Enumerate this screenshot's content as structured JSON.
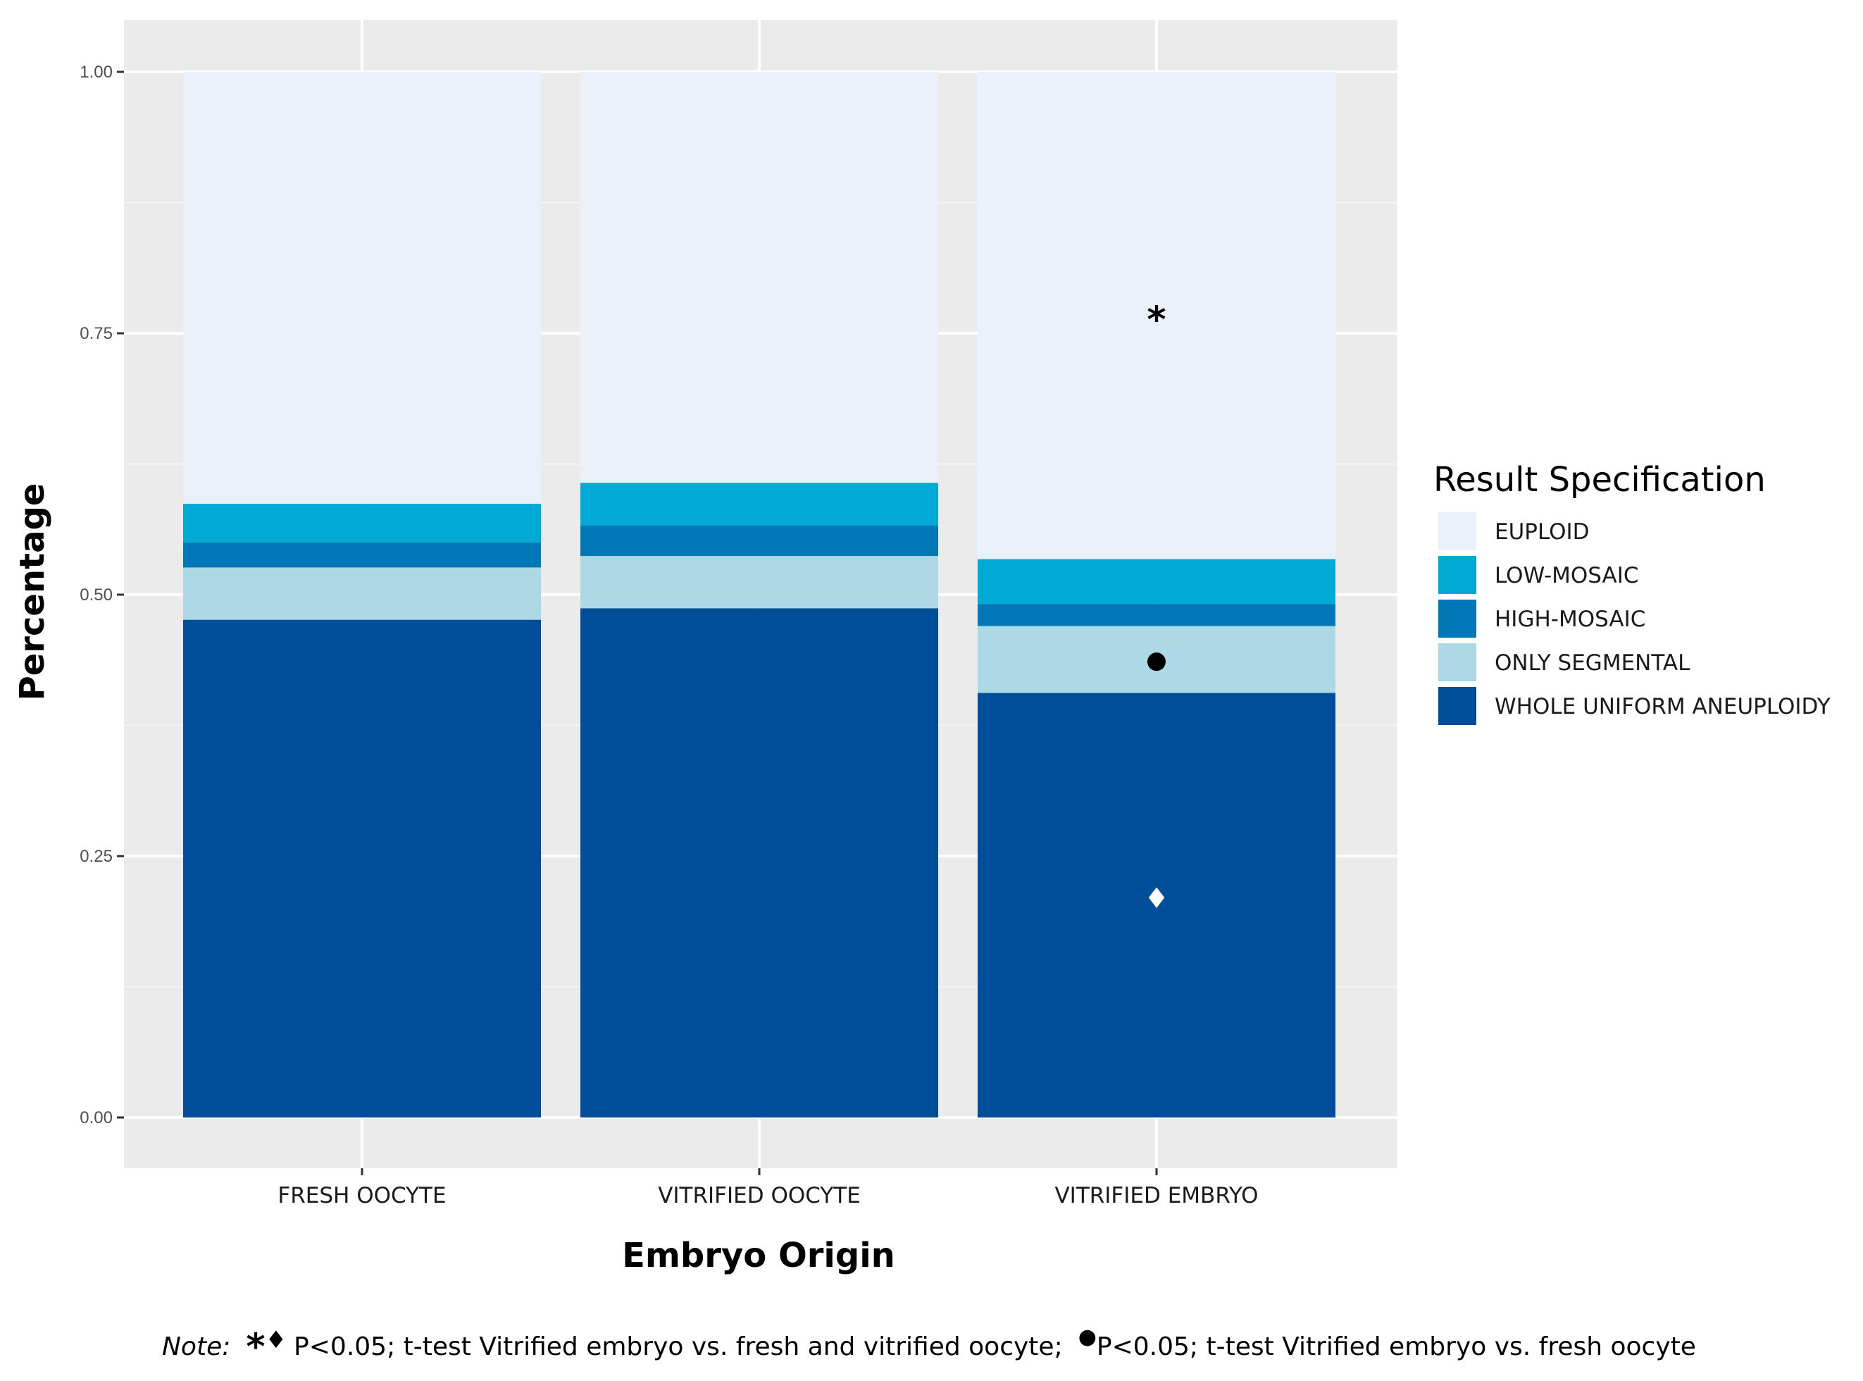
{
  "chart_data": {
    "type": "bar",
    "stacked": true,
    "categories": [
      "FRESH OOCYTE",
      "VITRIFIED OOCYTE",
      "VITRIFIED EMBRYO"
    ],
    "series": [
      {
        "name": "WHOLE UNIFORM ANEUPLOIDY",
        "color": "#004e9a",
        "values": [
          0.476,
          0.487,
          0.406
        ]
      },
      {
        "name": "ONLY SEGMENTAL",
        "color": "#add8e6",
        "values": [
          0.05,
          0.05,
          0.064
        ]
      },
      {
        "name": "HIGH-MOSAIC",
        "color": "#0077b6",
        "values": [
          0.024,
          0.029,
          0.021
        ]
      },
      {
        "name": "LOW-MOSAIC",
        "color": "#00aad4",
        "values": [
          0.037,
          0.041,
          0.043
        ]
      },
      {
        "name": "EUPLOID",
        "color": "#eaf1fb",
        "values": [
          0.413,
          0.393,
          0.466
        ]
      }
    ],
    "xlabel": "Embryo Origin",
    "ylabel": "Percentage",
    "ylim": [
      0,
      1.05
    ],
    "yticks": [
      "0.00",
      "0.25",
      "0.50",
      "0.75",
      "1.00"
    ],
    "legend_title": "Result Specification",
    "legend_position": "right",
    "legend_order": [
      "EUPLOID",
      "LOW-MOSAIC",
      "HIGH-MOSAIC",
      "ONLY SEGMENTAL",
      "WHOLE UNIFORM ANEUPLOIDY"
    ],
    "grid": true,
    "annotations": [
      {
        "symbol": "*",
        "category": "VITRIFIED EMBRYO",
        "series": "EUPLOID",
        "y": 0.77,
        "color": "#000000"
      },
      {
        "symbol": "●",
        "category": "VITRIFIED EMBRYO",
        "series": "ONLY SEGMENTAL",
        "y": 0.438,
        "color": "#000000"
      },
      {
        "symbol": "♦",
        "category": "VITRIFIED EMBRYO",
        "series": "WHOLE UNIFORM ANEUPLOIDY",
        "y": 0.21,
        "color": "#ffffff"
      }
    ]
  },
  "note": {
    "lead": "Note:",
    "sym_star": "*",
    "sym_diamond": "♦",
    "text1": "P<0.05; t-test Vitrified embryo vs. fresh and vitrified oocyte;",
    "sym_dot": "●",
    "text2": "P<0.05; t-test Vitrified embryo vs. fresh oocyte"
  }
}
